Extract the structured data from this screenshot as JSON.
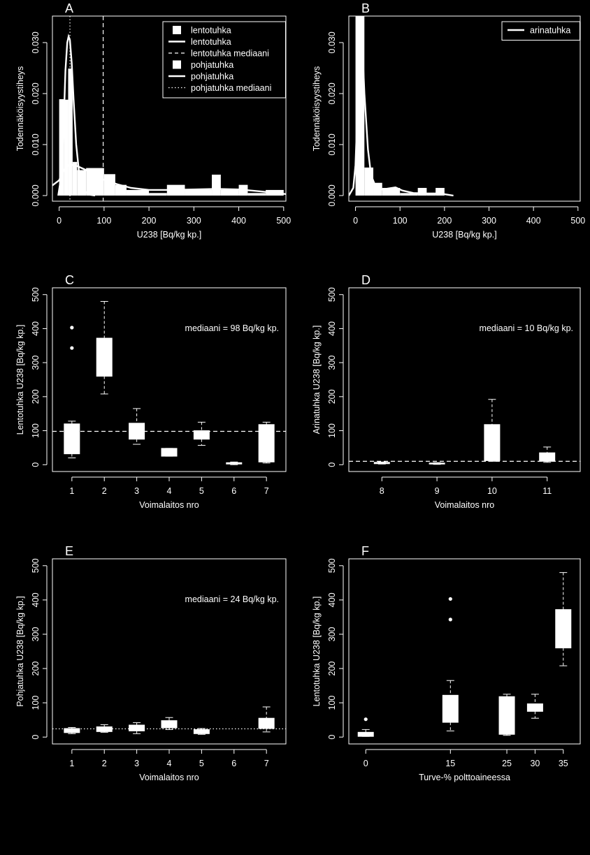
{
  "colors": {
    "background": "#000000",
    "foreground": "#ffffff"
  },
  "chart_data": [
    {
      "panel": "A",
      "type": "histogram",
      "xlabel": "U238 [Bq/kg kp.]",
      "ylabel": "Todennäköisyystiheys",
      "xlim": [
        -15,
        505
      ],
      "ylim": [
        -0.0011,
        0.0352
      ],
      "xticks": [
        0,
        100,
        200,
        300,
        400,
        500
      ],
      "yticks": [
        "0.000",
        "0.010",
        "0.020",
        "0.030"
      ],
      "legend_position": "top-right",
      "legend": [
        {
          "label": "lentotuhka",
          "symbol": "square"
        },
        {
          "label": "lentotuhka",
          "symbol": "solid-line"
        },
        {
          "label": "lentotuhka mediaani",
          "symbol": "dashed-line"
        },
        {
          "label": "pohjatuhka",
          "symbol": "square"
        },
        {
          "label": "pohjatuhka",
          "symbol": "solid-line"
        },
        {
          "label": "pohjatuhka mediaani",
          "symbol": "dotted-line"
        }
      ],
      "bins": [
        {
          "x0": 0,
          "x1": 10,
          "density": 0.0189
        },
        {
          "x0": 10,
          "x1": 20,
          "density": 0.0188
        },
        {
          "x0": 20,
          "x1": 30,
          "density": 0.0249
        },
        {
          "x0": 30,
          "x1": 40,
          "density": 0.0066
        },
        {
          "x0": 40,
          "x1": 60,
          "density": 0.005
        },
        {
          "x0": 60,
          "x1": 100,
          "density": 0.0054
        },
        {
          "x0": 100,
          "x1": 125,
          "density": 0.0042
        },
        {
          "x0": 125,
          "x1": 150,
          "density": 0.0021
        },
        {
          "x0": 150,
          "x1": 200,
          "density": 0.0011
        },
        {
          "x0": 200,
          "x1": 240,
          "density": 0.0005
        },
        {
          "x0": 240,
          "x1": 280,
          "density": 0.0021
        },
        {
          "x0": 280,
          "x1": 340,
          "density": 0.0011
        },
        {
          "x0": 340,
          "x1": 360,
          "density": 0.0041
        },
        {
          "x0": 360,
          "x1": 400,
          "density": 0.0011
        },
        {
          "x0": 400,
          "x1": 420,
          "density": 0.0021
        },
        {
          "x0": 420,
          "x1": 460,
          "density": 0.0005
        },
        {
          "x0": 460,
          "x1": 500,
          "density": 0.0011
        }
      ],
      "curves": [
        {
          "name": "lentotuhka",
          "points": [
            [
              -15,
              0.002
            ],
            [
              0,
              0.003
            ],
            [
              10,
              0.005
            ],
            [
              20,
              0.006
            ],
            [
              30,
              0.006
            ],
            [
              40,
              0.0058
            ],
            [
              60,
              0.005
            ],
            [
              80,
              0.004
            ],
            [
              100,
              0.0031
            ],
            [
              130,
              0.0022
            ],
            [
              160,
              0.0015
            ],
            [
              200,
              0.0011
            ],
            [
              250,
              0.0011
            ],
            [
              300,
              0.0012
            ],
            [
              350,
              0.0013
            ],
            [
              400,
              0.0012
            ],
            [
              450,
              0.0008
            ],
            [
              505,
              0.0003
            ]
          ]
        },
        {
          "name": "pohjatuhka",
          "points": [
            [
              -2,
              0
            ],
            [
              5,
              0.004
            ],
            [
              10,
              0.014
            ],
            [
              14,
              0.0245
            ],
            [
              18,
              0.03
            ],
            [
              21,
              0.0312
            ],
            [
              24,
              0.0305
            ],
            [
              28,
              0.026
            ],
            [
              32,
              0.019
            ],
            [
              38,
              0.01
            ],
            [
              45,
              0.004
            ],
            [
              55,
              0.001
            ],
            [
              65,
              0.0002
            ],
            [
              80,
              0
            ]
          ]
        }
      ],
      "medians": [
        {
          "name": "lentotuhka mediaani",
          "x": 98,
          "style": "dashed"
        },
        {
          "name": "pohjatuhka mediaani",
          "x": 24,
          "style": "dotted"
        }
      ]
    },
    {
      "panel": "B",
      "type": "histogram",
      "xlabel": "U238 [Bq/kg kp.]",
      "ylabel": "Todennäköisyystiheys",
      "xlim": [
        -15,
        505
      ],
      "ylim": [
        -0.0011,
        0.0352
      ],
      "xticks": [
        0,
        100,
        200,
        300,
        400,
        500
      ],
      "yticks": [
        "0.000",
        "0.010",
        "0.020",
        "0.030"
      ],
      "legend_position": "top-right",
      "legend": [
        {
          "label": "arinatuhka",
          "symbol": "solid-line"
        }
      ],
      "bins": [
        {
          "x0": 0,
          "x1": 20,
          "density": 0.0355
        },
        {
          "x0": 20,
          "x1": 40,
          "density": 0.0055
        },
        {
          "x0": 40,
          "x1": 60,
          "density": 0.0025
        },
        {
          "x0": 60,
          "x1": 100,
          "density": 0.0015
        },
        {
          "x0": 100,
          "x1": 140,
          "density": 0.0005
        },
        {
          "x0": 140,
          "x1": 160,
          "density": 0.0015
        },
        {
          "x0": 160,
          "x1": 180,
          "density": 0.0005
        },
        {
          "x0": 180,
          "x1": 200,
          "density": 0.0015
        }
      ],
      "curves": [
        {
          "name": "arinatuhka",
          "points": [
            [
              -15,
              0
            ],
            [
              -5,
              0.0015
            ],
            [
              0,
              0.006
            ],
            [
              5,
              0.018
            ],
            [
              9,
              0.029
            ],
            [
              12,
              0.033
            ],
            [
              15,
              0.03
            ],
            [
              20,
              0.02
            ],
            [
              28,
              0.009
            ],
            [
              35,
              0.004
            ],
            [
              45,
              0.0018
            ],
            [
              60,
              0.0012
            ],
            [
              75,
              0.0014
            ],
            [
              90,
              0.0016
            ],
            [
              105,
              0.001
            ],
            [
              130,
              0.0005
            ],
            [
              160,
              0.0004
            ],
            [
              190,
              0.0004
            ],
            [
              220,
              0
            ]
          ]
        }
      ],
      "medians": []
    },
    {
      "panel": "C",
      "type": "box",
      "xlabel": "Voimalaitos nro",
      "ylabel": "Lentotuhka U238 [Bq/kg kp.]",
      "xlim": [
        0.4,
        7.6
      ],
      "ylim": [
        -20,
        520
      ],
      "yticks": [
        0,
        100,
        200,
        300,
        400,
        500
      ],
      "annotation": "mediaani = 98 Bq/kg kp.",
      "median_line": {
        "y": 98,
        "style": "dashed"
      },
      "boxes": [
        {
          "pos": 1,
          "label": "1",
          "whisker_low": 20,
          "q1": 32,
          "median": 105,
          "q3": 120,
          "whisker_high": 128,
          "outliers": [
            343,
            403
          ]
        },
        {
          "pos": 2,
          "label": "2",
          "whisker_low": 208,
          "q1": 260,
          "median": 330,
          "q3": 372,
          "whisker_high": 480,
          "outliers": []
        },
        {
          "pos": 3,
          "label": "3",
          "whisker_low": 60,
          "q1": 75,
          "median": 100,
          "q3": 122,
          "whisker_high": 165,
          "outliers": []
        },
        {
          "pos": 4,
          "label": "4",
          "whisker_low": 25,
          "q1": 25,
          "median": 35,
          "q3": 48,
          "whisker_high": 48,
          "outliers": []
        },
        {
          "pos": 5,
          "label": "5",
          "whisker_low": 57,
          "q1": 75,
          "median": 88,
          "q3": 100,
          "whisker_high": 125,
          "outliers": []
        },
        {
          "pos": 6,
          "label": "6",
          "whisker_low": 0,
          "q1": 2,
          "median": 4,
          "q3": 6,
          "whisker_high": 8,
          "outliers": []
        },
        {
          "pos": 7,
          "label": "7",
          "whisker_low": 5,
          "q1": 8,
          "median": 95,
          "q3": 118,
          "whisker_high": 125,
          "outliers": []
        }
      ]
    },
    {
      "panel": "D",
      "type": "box",
      "xlabel": "Voimalaitos nro",
      "ylabel": "Arinatuhka U238 [Bq/kg kp.]",
      "xlim": [
        0.4,
        4.6
      ],
      "ylim": [
        -20,
        520
      ],
      "yticks": [
        0,
        100,
        200,
        300,
        400,
        500
      ],
      "annotation": "mediaani = 10 Bq/kg kp.",
      "median_line": {
        "y": 10,
        "style": "dashed"
      },
      "boxes": [
        {
          "pos": 1,
          "label": "8",
          "whisker_low": 2,
          "q1": 3,
          "median": 5,
          "q3": 7,
          "whisker_high": 8,
          "outliers": []
        },
        {
          "pos": 2,
          "label": "9",
          "whisker_low": 1,
          "q1": 2,
          "median": 3,
          "q3": 5,
          "whisker_high": 6,
          "outliers": []
        },
        {
          "pos": 3,
          "label": "10",
          "whisker_low": 10,
          "q1": 12,
          "median": 65,
          "q3": 118,
          "whisker_high": 192,
          "outliers": []
        },
        {
          "pos": 4,
          "label": "11",
          "whisker_low": 7,
          "q1": 10,
          "median": 20,
          "q3": 35,
          "whisker_high": 52,
          "outliers": []
        }
      ]
    },
    {
      "panel": "E",
      "type": "box",
      "xlabel": "Voimalaitos nro",
      "ylabel": "Pohjatuhka U238 [Bq/kg kp.]",
      "xlim": [
        0.4,
        7.6
      ],
      "ylim": [
        -20,
        520
      ],
      "yticks": [
        0,
        100,
        200,
        300,
        400,
        500
      ],
      "annotation": "mediaani = 24 Bq/kg kp.",
      "median_line": {
        "y": 24,
        "style": "dotted"
      },
      "boxes": [
        {
          "pos": 1,
          "label": "1",
          "whisker_low": 10,
          "q1": 13,
          "median": 18,
          "q3": 25,
          "whisker_high": 28,
          "outliers": []
        },
        {
          "pos": 2,
          "label": "2",
          "whisker_low": 14,
          "q1": 16,
          "median": 24,
          "q3": 30,
          "whisker_high": 36,
          "outliers": []
        },
        {
          "pos": 3,
          "label": "3",
          "whisker_low": 10,
          "q1": 18,
          "median": 28,
          "q3": 35,
          "whisker_high": 42,
          "outliers": []
        },
        {
          "pos": 4,
          "label": "4",
          "whisker_low": 22,
          "q1": 27,
          "median": 38,
          "q3": 48,
          "whisker_high": 57,
          "outliers": []
        },
        {
          "pos": 5,
          "label": "5",
          "whisker_low": 8,
          "q1": 10,
          "median": 15,
          "q3": 22,
          "whisker_high": 25,
          "outliers": []
        },
        {
          "pos": 6,
          "label": "6"
        },
        {
          "pos": 7,
          "label": "7",
          "whisker_low": 15,
          "q1": 25,
          "median": 40,
          "q3": 55,
          "whisker_high": 88,
          "outliers": []
        }
      ]
    },
    {
      "panel": "F",
      "type": "box",
      "xlabel": "Turve-% polttoaineessa",
      "ylabel": "Lentotuhka U238 [Bq/kg kp.]",
      "xlim": [
        -3,
        38
      ],
      "ylim": [
        -20,
        520
      ],
      "yticks": [
        0,
        100,
        200,
        300,
        400,
        500
      ],
      "boxes": [
        {
          "pos": 0,
          "label": "0",
          "whisker_low": 2,
          "q1": 2,
          "median": 8,
          "q3": 14,
          "whisker_high": 22,
          "outliers": [
            52
          ]
        },
        {
          "pos": 15,
          "label": "15",
          "whisker_low": 18,
          "q1": 43,
          "median": 95,
          "q3": 122,
          "whisker_high": 165,
          "outliers": [
            343,
            403
          ]
        },
        {
          "pos": 25,
          "label": "25",
          "whisker_low": 5,
          "q1": 8,
          "median": 95,
          "q3": 118,
          "whisker_high": 125,
          "outliers": []
        },
        {
          "pos": 30,
          "label": "30",
          "whisker_low": 55,
          "q1": 75,
          "median": 88,
          "q3": 97,
          "whisker_high": 125,
          "outliers": []
        },
        {
          "pos": 35,
          "label": "35",
          "whisker_low": 208,
          "q1": 260,
          "median": 330,
          "q3": 372,
          "whisker_high": 480,
          "outliers": []
        }
      ]
    }
  ]
}
